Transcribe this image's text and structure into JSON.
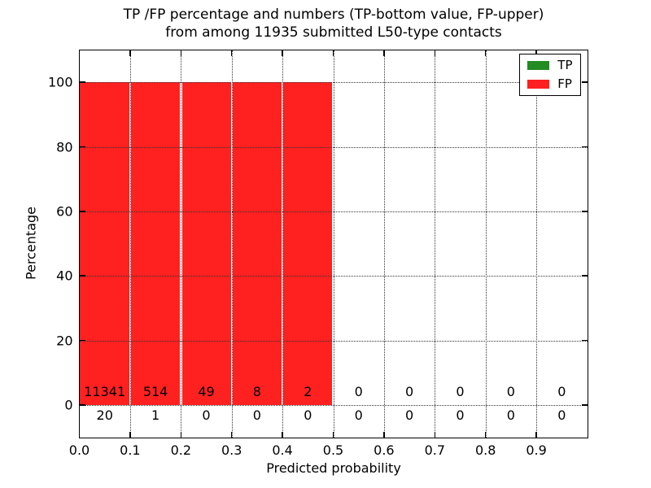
{
  "figure": {
    "background_color": "#ffffff",
    "title_line1": "TP /FP percentage and numbers (TP-bottom value, FP-upper)",
    "title_line2": "from among 11935 submitted L50-type contacts"
  },
  "axes": {
    "xlabel": "Predicted probability",
    "ylabel": "Percentage"
  },
  "legend": {
    "position": "upper right",
    "items": [
      {
        "label": "TP",
        "color": "#228b22"
      },
      {
        "label": "FP",
        "color": "#ff2020"
      }
    ]
  },
  "chart_data": {
    "type": "bar",
    "title": "TP /FP percentage and numbers (TP-bottom value, FP-upper) from among 11935 submitted L50-type contacts",
    "xlabel": "Predicted probability",
    "ylabel": "Percentage",
    "xlim": [
      0.0,
      1.0
    ],
    "ylim": [
      -10,
      110
    ],
    "x_ticks": [
      0.0,
      0.1,
      0.2,
      0.3,
      0.4,
      0.5,
      0.6,
      0.7,
      0.8,
      0.9
    ],
    "x_tick_labels": [
      "0.0",
      "0.1",
      "0.2",
      "0.3",
      "0.4",
      "0.5",
      "0.6",
      "0.7",
      "0.8",
      "0.9"
    ],
    "y_ticks": [
      0,
      20,
      40,
      60,
      80,
      100
    ],
    "y_tick_labels": [
      "0",
      "20",
      "40",
      "60",
      "80",
      "100"
    ],
    "grid": true,
    "grid_style": "dotted",
    "legend_position": "upper right",
    "bin_width": 0.1,
    "bin_starts": [
      0.0,
      0.1,
      0.2,
      0.3,
      0.4,
      0.5,
      0.6,
      0.7,
      0.8,
      0.9
    ],
    "series": [
      {
        "name": "TP",
        "color": "#228b22",
        "percent": [
          0,
          0,
          0,
          0,
          0,
          0,
          0,
          0,
          0,
          0
        ],
        "counts": [
          20,
          1,
          0,
          0,
          0,
          0,
          0,
          0,
          0,
          0
        ],
        "counts_row": "below-zero-line"
      },
      {
        "name": "FP",
        "color": "#ff2020",
        "percent": [
          100,
          100,
          100,
          100,
          100,
          0,
          0,
          0,
          0,
          0
        ],
        "counts": [
          11341,
          514,
          49,
          8,
          2,
          0,
          0,
          0,
          0,
          0
        ],
        "counts_row": "above-zero-line"
      }
    ]
  }
}
